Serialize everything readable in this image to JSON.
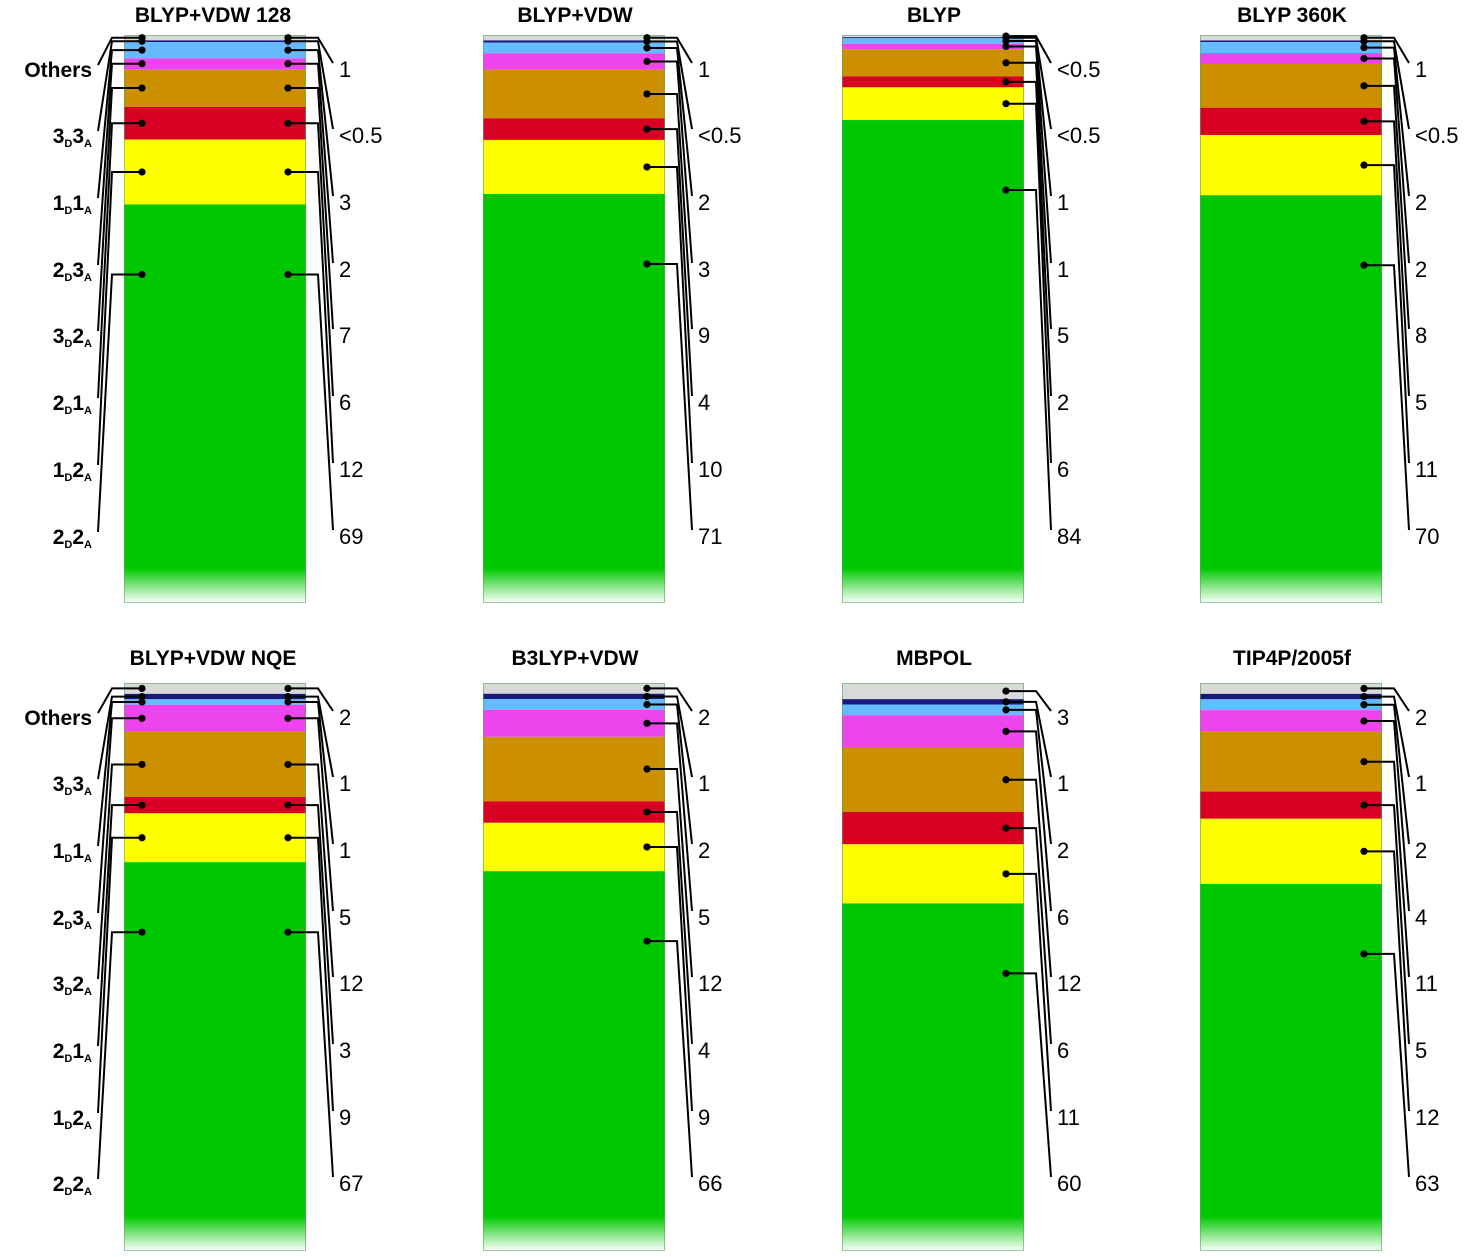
{
  "chart_data": {
    "type": "stacked-bar",
    "unit": "%",
    "categories_top_to_bottom": [
      "Others",
      "3D3A",
      "1D1A",
      "2D3A",
      "3D2A",
      "2D1A",
      "1D2A",
      "2D2A"
    ],
    "category_labels": [
      {
        "main1": "Others",
        "sub1": "",
        "main2": "",
        "sub2": ""
      },
      {
        "main1": "3",
        "sub1": "D",
        "main2": "3",
        "sub2": "A"
      },
      {
        "main1": "1",
        "sub1": "D",
        "main2": "1",
        "sub2": "A"
      },
      {
        "main1": "2",
        "sub1": "D",
        "main2": "3",
        "sub2": "A"
      },
      {
        "main1": "3",
        "sub1": "D",
        "main2": "2",
        "sub2": "A"
      },
      {
        "main1": "2",
        "sub1": "D",
        "main2": "1",
        "sub2": "A"
      },
      {
        "main1": "1",
        "sub1": "D",
        "main2": "2",
        "sub2": "A"
      },
      {
        "main1": "2",
        "sub1": "D",
        "main2": "2",
        "sub2": "A"
      }
    ],
    "category_colors": [
      "#d9d9d9",
      "#1a1a7a",
      "#66bbff",
      "#ee44ee",
      "#cc8f00",
      "#d80022",
      "#ffff00",
      "#00c800"
    ],
    "panels": [
      {
        "title": "BLYP+VDW 128",
        "labels": [
          "1",
          "<0.5",
          "3",
          "2",
          "7",
          "6",
          "12",
          "69"
        ],
        "values": [
          1,
          0.3,
          3,
          2,
          7,
          6,
          12,
          69
        ]
      },
      {
        "title": "BLYP+VDW",
        "labels": [
          "1",
          "<0.5",
          "2",
          "3",
          "9",
          "4",
          "10",
          "71"
        ],
        "values": [
          1,
          0.4,
          2,
          3,
          9,
          4,
          10,
          71
        ]
      },
      {
        "title": "BLYP",
        "labels": [
          "<0.5",
          "<0.5",
          "1",
          "1",
          "5",
          "2",
          "6",
          "84"
        ],
        "values": [
          0.4,
          0.2,
          1,
          1,
          5,
          2,
          6,
          84
        ]
      },
      {
        "title": "BLYP 360K",
        "labels": [
          "1",
          "<0.5",
          "2",
          "2",
          "8",
          "5",
          "11",
          "70"
        ],
        "values": [
          1,
          0.3,
          2,
          2,
          8,
          5,
          11,
          70
        ]
      },
      {
        "title": "BLYP+VDW NQE",
        "labels": [
          "2",
          "1",
          "1",
          "5",
          "12",
          "3",
          "9",
          "67"
        ],
        "values": [
          2,
          1,
          1,
          5,
          12,
          3,
          9,
          67
        ]
      },
      {
        "title": "B3LYP+VDW",
        "labels": [
          "2",
          "1",
          "2",
          "5",
          "12",
          "4",
          "9",
          "66"
        ],
        "values": [
          2,
          1,
          2,
          5,
          12,
          4,
          9,
          66
        ]
      },
      {
        "title": "MBPOL",
        "labels": [
          "3",
          "1",
          "2",
          "6",
          "12",
          "6",
          "11",
          "60"
        ],
        "values": [
          3,
          1,
          2,
          6,
          12,
          6,
          11,
          60
        ]
      },
      {
        "title": "TIP4P/2005f",
        "labels": [
          "2",
          "1",
          "2",
          "4",
          "11",
          "5",
          "12",
          "63"
        ],
        "values": [
          2,
          1,
          2,
          4,
          11,
          5,
          12,
          63
        ]
      }
    ]
  }
}
